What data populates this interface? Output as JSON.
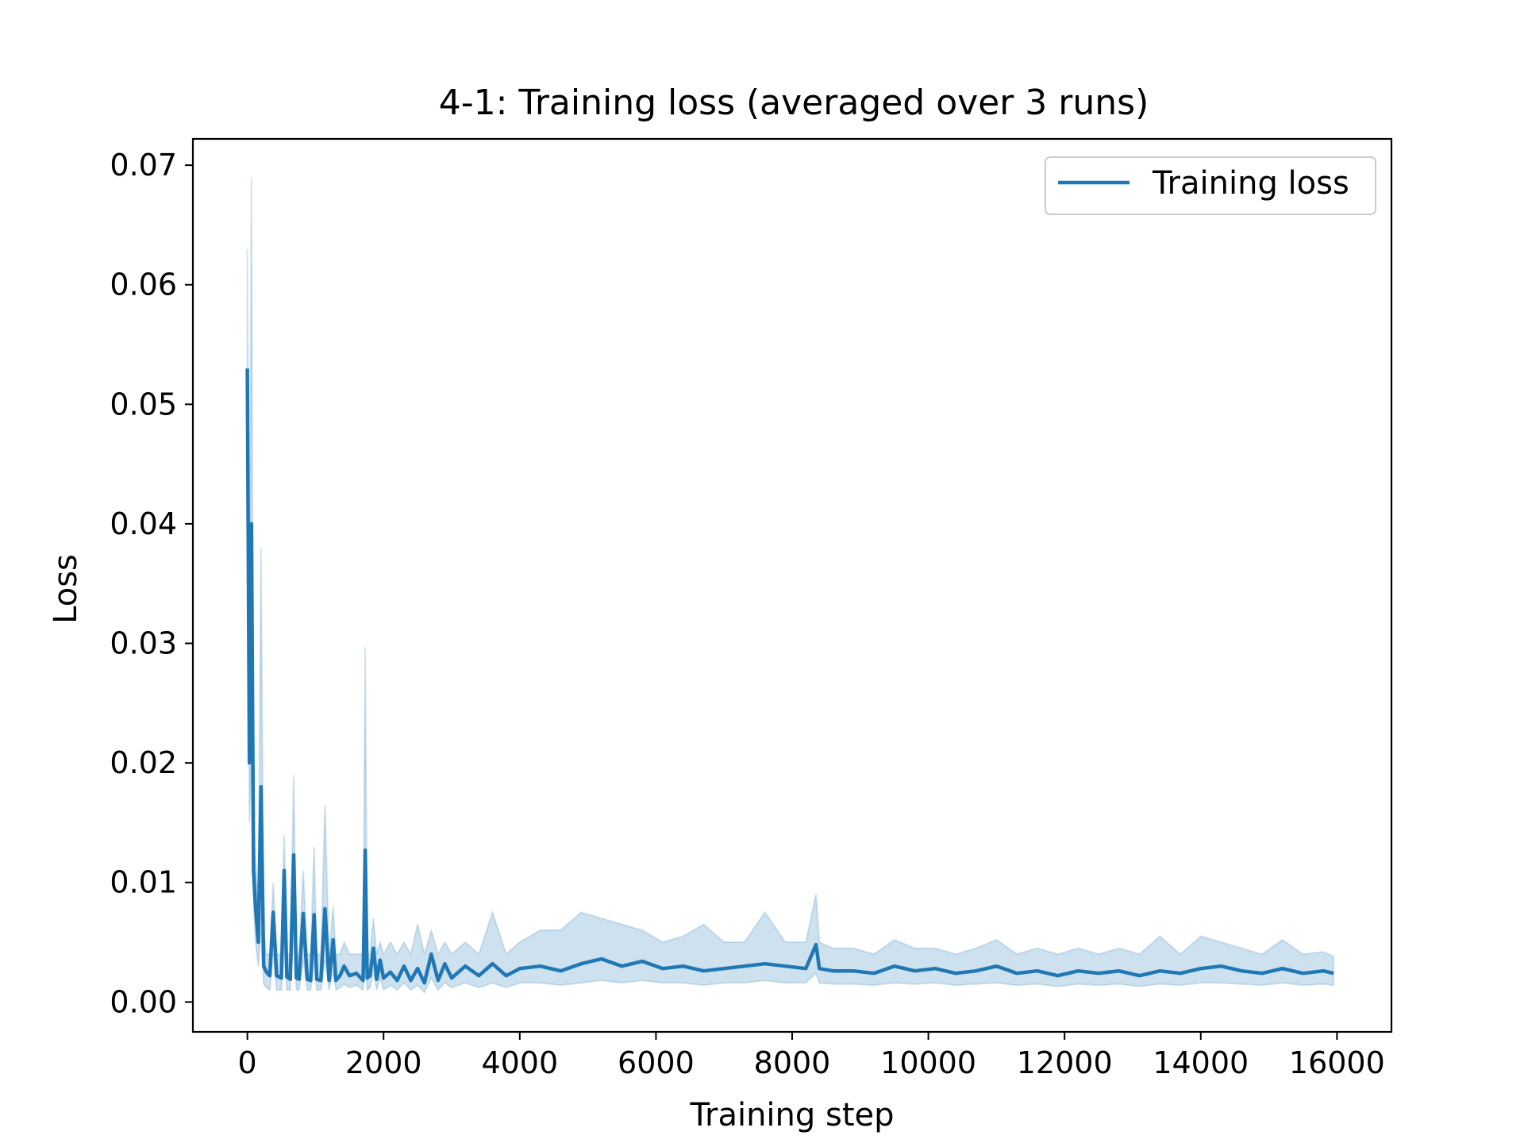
{
  "chart_data": {
    "type": "line",
    "title": "4-1: Training loss (averaged over 3 runs)",
    "xlabel": "Training step",
    "ylabel": "Loss",
    "xlim": [
      -800,
      16800
    ],
    "ylim": [
      -0.0025,
      0.0722
    ],
    "xticks": [
      0,
      2000,
      4000,
      6000,
      8000,
      10000,
      12000,
      14000,
      16000
    ],
    "xtick_labels": [
      "0",
      "2000",
      "4000",
      "6000",
      "8000",
      "10000",
      "12000",
      "14000",
      "16000"
    ],
    "yticks": [
      0.0,
      0.01,
      0.02,
      0.03,
      0.04,
      0.05,
      0.06,
      0.07
    ],
    "ytick_labels": [
      "0.00",
      "0.01",
      "0.02",
      "0.03",
      "0.04",
      "0.05",
      "0.06",
      "0.07"
    ],
    "grid": false,
    "legend": {
      "position": "top-right",
      "entries": [
        "Training loss"
      ]
    },
    "colors": {
      "line": "#1f77b4",
      "band": "#1f77b4",
      "axes": "#000000"
    },
    "series": [
      {
        "name": "Training loss",
        "x": [
          0,
          30,
          60,
          90,
          120,
          160,
          200,
          240,
          280,
          330,
          380,
          430,
          500,
          540,
          580,
          630,
          680,
          720,
          760,
          820,
          880,
          930,
          980,
          1020,
          1080,
          1140,
          1200,
          1260,
          1300,
          1360,
          1420,
          1500,
          1600,
          1700,
          1730,
          1760,
          1800,
          1850,
          1900,
          1950,
          2000,
          2100,
          2200,
          2300,
          2400,
          2500,
          2600,
          2700,
          2800,
          2900,
          3000,
          3200,
          3400,
          3600,
          3800,
          4000,
          4300,
          4600,
          4900,
          5200,
          5500,
          5800,
          6100,
          6400,
          6700,
          7000,
          7300,
          7600,
          7900,
          8200,
          8350,
          8400,
          8600,
          8900,
          9200,
          9500,
          9800,
          10100,
          10400,
          10700,
          11000,
          11300,
          11600,
          11900,
          12200,
          12500,
          12800,
          13100,
          13400,
          13700,
          14000,
          14300,
          14600,
          14900,
          15200,
          15500,
          15800,
          15950
        ],
        "mean": [
          0.053,
          0.02,
          0.04,
          0.011,
          0.008,
          0.005,
          0.018,
          0.003,
          0.0025,
          0.0022,
          0.0075,
          0.0022,
          0.002,
          0.011,
          0.0021,
          0.0019,
          0.0123,
          0.002,
          0.0019,
          0.0074,
          0.0019,
          0.0018,
          0.0073,
          0.0019,
          0.0018,
          0.0078,
          0.0018,
          0.0052,
          0.0018,
          0.0022,
          0.003,
          0.0022,
          0.0024,
          0.0018,
          0.0127,
          0.002,
          0.0022,
          0.0045,
          0.0019,
          0.0035,
          0.002,
          0.0025,
          0.0018,
          0.003,
          0.0018,
          0.0028,
          0.0016,
          0.004,
          0.0018,
          0.0032,
          0.002,
          0.003,
          0.0022,
          0.0032,
          0.0022,
          0.0028,
          0.003,
          0.0026,
          0.0032,
          0.0036,
          0.003,
          0.0034,
          0.0028,
          0.003,
          0.0026,
          0.0028,
          0.003,
          0.0032,
          0.003,
          0.0028,
          0.0048,
          0.0028,
          0.0026,
          0.0026,
          0.0024,
          0.003,
          0.0026,
          0.0028,
          0.0024,
          0.0026,
          0.003,
          0.0024,
          0.0026,
          0.0022,
          0.0026,
          0.0024,
          0.0026,
          0.0022,
          0.0026,
          0.0024,
          0.0028,
          0.003,
          0.0026,
          0.0024,
          0.0028,
          0.0024,
          0.0026,
          0.0024
        ],
        "upper": [
          0.063,
          0.03,
          0.069,
          0.015,
          0.012,
          0.008,
          0.038,
          0.006,
          0.004,
          0.004,
          0.01,
          0.004,
          0.004,
          0.014,
          0.004,
          0.004,
          0.019,
          0.004,
          0.004,
          0.011,
          0.004,
          0.004,
          0.013,
          0.004,
          0.004,
          0.0165,
          0.004,
          0.008,
          0.004,
          0.004,
          0.005,
          0.004,
          0.004,
          0.004,
          0.0297,
          0.004,
          0.004,
          0.007,
          0.004,
          0.005,
          0.004,
          0.005,
          0.004,
          0.005,
          0.004,
          0.0065,
          0.004,
          0.006,
          0.004,
          0.005,
          0.004,
          0.005,
          0.004,
          0.0075,
          0.004,
          0.005,
          0.006,
          0.006,
          0.0075,
          0.007,
          0.0065,
          0.006,
          0.005,
          0.0055,
          0.0065,
          0.005,
          0.005,
          0.0075,
          0.005,
          0.005,
          0.009,
          0.005,
          0.0045,
          0.0045,
          0.004,
          0.0052,
          0.0045,
          0.0045,
          0.004,
          0.0045,
          0.0052,
          0.004,
          0.0045,
          0.004,
          0.0045,
          0.004,
          0.0045,
          0.004,
          0.0055,
          0.004,
          0.0055,
          0.005,
          0.0045,
          0.004,
          0.0052,
          0.004,
          0.0042,
          0.0038
        ],
        "lower": [
          0.046,
          0.015,
          0.02,
          0.008,
          0.005,
          0.003,
          0.006,
          0.0015,
          0.0012,
          0.001,
          0.004,
          0.001,
          0.001,
          0.005,
          0.001,
          0.001,
          0.006,
          0.001,
          0.001,
          0.0035,
          0.001,
          0.001,
          0.0035,
          0.001,
          0.001,
          0.0035,
          0.001,
          0.0025,
          0.001,
          0.0012,
          0.0015,
          0.0012,
          0.0014,
          0.001,
          0.005,
          0.001,
          0.0012,
          0.0025,
          0.001,
          0.002,
          0.001,
          0.0014,
          0.001,
          0.0016,
          0.001,
          0.0014,
          0.0008,
          0.002,
          0.001,
          0.0016,
          0.0012,
          0.0016,
          0.0012,
          0.0016,
          0.0012,
          0.0016,
          0.0016,
          0.0014,
          0.0016,
          0.0018,
          0.0016,
          0.0018,
          0.0016,
          0.0016,
          0.0014,
          0.0016,
          0.0016,
          0.0018,
          0.0016,
          0.0016,
          0.0024,
          0.0016,
          0.0015,
          0.0015,
          0.0014,
          0.0016,
          0.0015,
          0.0016,
          0.0014,
          0.0015,
          0.0016,
          0.0014,
          0.0015,
          0.0013,
          0.0015,
          0.0014,
          0.0015,
          0.0013,
          0.0015,
          0.0014,
          0.0016,
          0.0016,
          0.0015,
          0.0014,
          0.0016,
          0.0014,
          0.0015,
          0.0014
        ]
      }
    ]
  }
}
